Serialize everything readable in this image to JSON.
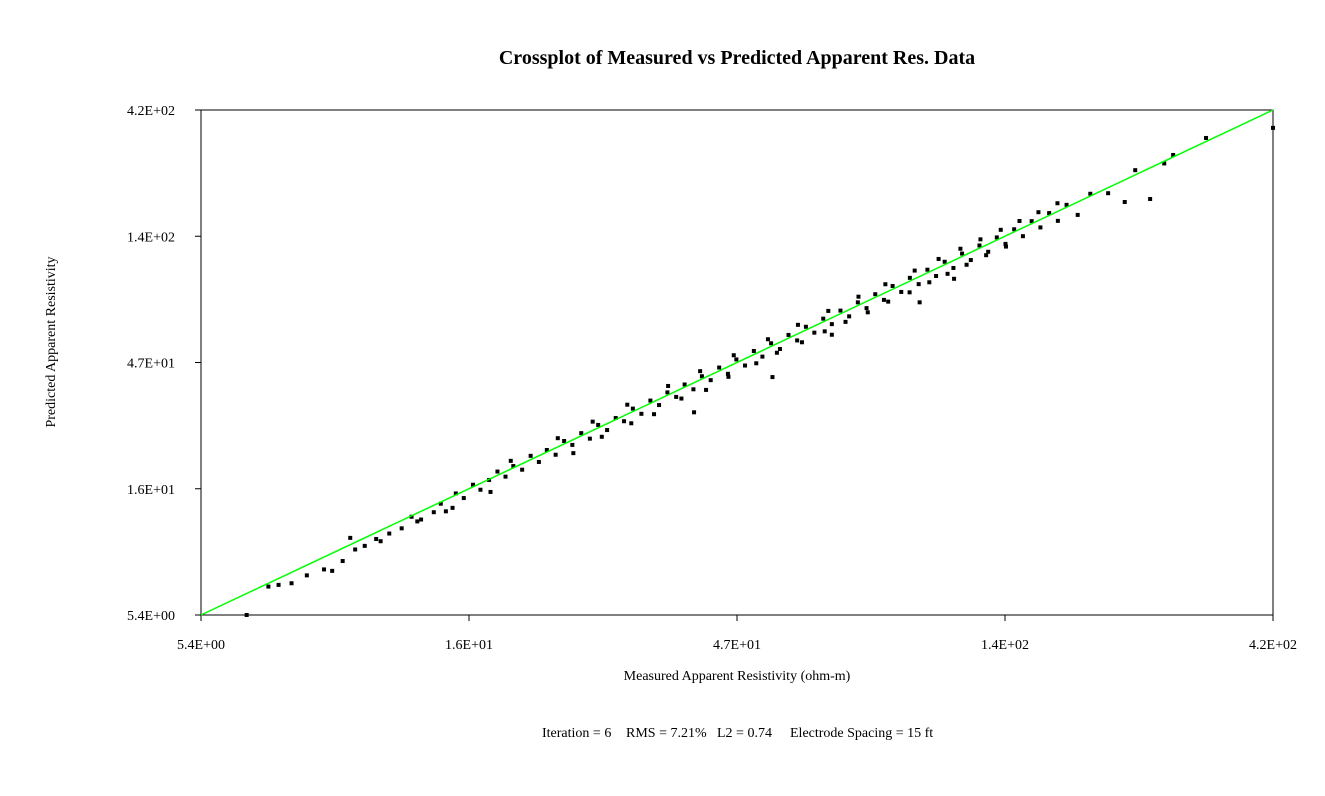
{
  "chart_data": {
    "type": "scatter",
    "title": "Crossplot of Measured vs Predicted Apparent Res. Data",
    "xlabel": "Measured Apparent Resistivity (ohm-m)",
    "ylabel": "Predicted Apparent Resistivity",
    "x_scale": "log",
    "y_scale": "log",
    "xlim": [
      5.4,
      420
    ],
    "ylim": [
      5.4,
      420
    ],
    "x_ticks": [
      "5.4E+00",
      "1.6E+01",
      "4.7E+01",
      "1.4E+02",
      "4.2E+02"
    ],
    "y_ticks": [
      "5.4E+00",
      "1.6E+01",
      "4.7E+01",
      "1.4E+02",
      "4.2E+02"
    ],
    "grid": false,
    "point_color": "#000000",
    "line_color": "#00ff00",
    "reference_line": {
      "x": [
        5.4,
        420
      ],
      "y": [
        5.4,
        420
      ]
    },
    "series": [
      {
        "points": [
          [
            6.5,
            5.4
          ],
          [
            7.1,
            6.9
          ],
          [
            7.4,
            7.0
          ],
          [
            7.8,
            7.1
          ],
          [
            8.3,
            7.6
          ],
          [
            8.9,
            8.0
          ],
          [
            9.2,
            7.9
          ],
          [
            9.6,
            8.6
          ],
          [
            10.1,
            9.5
          ],
          [
            10.5,
            9.8
          ],
          [
            11.2,
            10.2
          ],
          [
            11.6,
            10.9
          ],
          [
            12.2,
            11.4
          ],
          [
            12.7,
            12.6
          ],
          [
            13.2,
            12.3
          ],
          [
            13.9,
            13.1
          ],
          [
            14.3,
            14.1
          ],
          [
            14.6,
            13.2
          ],
          [
            15.2,
            15.4
          ],
          [
            15.7,
            14.8
          ],
          [
            16.3,
            16.6
          ],
          [
            16.8,
            15.9
          ],
          [
            17.4,
            17.3
          ],
          [
            18.0,
            18.6
          ],
          [
            18.6,
            17.8
          ],
          [
            19.2,
            19.5
          ],
          [
            19.9,
            18.9
          ],
          [
            20.6,
            21.3
          ],
          [
            21.3,
            20.2
          ],
          [
            22.0,
            22.4
          ],
          [
            22.8,
            21.5
          ],
          [
            23.6,
            24.2
          ],
          [
            24.4,
            23.4
          ],
          [
            25.3,
            25.9
          ],
          [
            26.2,
            24.7
          ],
          [
            27.1,
            27.8
          ],
          [
            28.1,
            26.6
          ],
          [
            29.1,
            29.5
          ],
          [
            30.1,
            28.7
          ],
          [
            31.2,
            32.0
          ],
          [
            32.3,
            30.6
          ],
          [
            33.5,
            34.3
          ],
          [
            34.7,
            33.0
          ],
          [
            35.9,
            36.8
          ],
          [
            37.2,
            35.4
          ],
          [
            38.5,
            39.4
          ],
          [
            39.9,
            37.8
          ],
          [
            41.3,
            42.3
          ],
          [
            42.8,
            40.9
          ],
          [
            44.3,
            45.6
          ],
          [
            45.9,
            43.2
          ],
          [
            47.5,
            48.9
          ],
          [
            49.2,
            46.4
          ],
          [
            51.0,
            52.6
          ],
          [
            52.8,
            50.1
          ],
          [
            54.7,
            56.2
          ],
          [
            56.7,
            53.5
          ],
          [
            58.7,
            60.4
          ],
          [
            60.8,
            57.6
          ],
          [
            63.0,
            64.8
          ],
          [
            65.2,
            61.6
          ],
          [
            67.6,
            69.5
          ],
          [
            70.0,
            66.3
          ],
          [
            72.5,
            74.5
          ],
          [
            75.1,
            70.9
          ],
          [
            77.8,
            80.0
          ],
          [
            80.6,
            76.1
          ],
          [
            83.5,
            85.8
          ],
          [
            86.5,
            81.7
          ],
          [
            89.6,
            92.1
          ],
          [
            92.8,
            87.5
          ],
          [
            96.1,
            98.8
          ],
          [
            99.6,
            93.6
          ],
          [
            103.2,
            106.0
          ],
          [
            106.9,
            100.4
          ],
          [
            110.7,
            113.5
          ],
          [
            114.7,
            107.6
          ],
          [
            118.8,
            121.8
          ],
          [
            123.1,
            115.2
          ],
          [
            127.5,
            130.6
          ],
          [
            132.1,
            123.7
          ],
          [
            136.8,
            140.0
          ],
          [
            141.7,
            132.4
          ],
          [
            146.8,
            150.2
          ],
          [
            152.1,
            141.5
          ],
          [
            157.6,
            161.1
          ],
          [
            163.3,
            152.6
          ],
          [
            169.2,
            172.7
          ],
          [
            175.3,
            161.5
          ],
          [
            181.6,
            185.4
          ],
          [
            190.0,
            170.0
          ],
          [
            200.0,
            204.0
          ],
          [
            215.0,
            205.0
          ],
          [
            230.0,
            190.0
          ],
          [
            240.0,
            250.0
          ],
          [
            255.0,
            195.0
          ],
          [
            270.0,
            265.0
          ],
          [
            280.0,
            285.0
          ],
          [
            320.0,
            330.0
          ],
          [
            420.0,
            360.0
          ],
          [
            24.5,
            21.8
          ],
          [
            27.5,
            25.1
          ],
          [
            31.0,
            28.2
          ],
          [
            34.0,
            30.5
          ],
          [
            38.0,
            34.9
          ],
          [
            42.0,
            37.6
          ],
          [
            46.0,
            42.1
          ],
          [
            51.5,
            47.3
          ],
          [
            56.0,
            51.8
          ],
          [
            62.0,
            56.7
          ],
          [
            68.0,
            62.3
          ],
          [
            74.0,
            67.6
          ],
          [
            81.0,
            73.4
          ],
          [
            88.0,
            80.5
          ],
          [
            96.0,
            87.2
          ],
          [
            104.0,
            95.1
          ],
          [
            112.0,
            102.3
          ],
          [
            121.0,
            110.6
          ],
          [
            131.0,
            120.1
          ],
          [
            142.0,
            129.4
          ],
          [
            19.0,
            20.4
          ],
          [
            23.0,
            24.8
          ],
          [
            26.5,
            28.6
          ],
          [
            30.5,
            33.1
          ],
          [
            36.0,
            38.9
          ],
          [
            41.0,
            44.2
          ],
          [
            47.0,
            50.7
          ],
          [
            54.0,
            58.2
          ],
          [
            61.0,
            65.9
          ],
          [
            69.0,
            74.3
          ],
          [
            78.0,
            84.0
          ],
          [
            87.0,
            93.5
          ],
          [
            98.0,
            105.2
          ],
          [
            108.0,
            116.3
          ],
          [
            118.0,
            127.0
          ],
          [
            128.0,
            137.7
          ],
          [
            139.0,
            149.5
          ],
          [
            150.0,
            161.3
          ],
          [
            162.0,
            174.0
          ],
          [
            175.0,
            188.0
          ],
          [
            17.5,
            15.6
          ],
          [
            15.0,
            13.6
          ],
          [
            13.0,
            12.1
          ],
          [
            11.0,
            10.4
          ],
          [
            9.9,
            10.5
          ],
          [
            55.0,
            42.0
          ],
          [
            40.0,
            31.0
          ],
          [
            70.0,
            60.5
          ],
          [
            100.0,
            80.0
          ],
          [
            115.0,
            98.0
          ]
        ]
      }
    ]
  },
  "footer": {
    "iteration": "Iteration = 6",
    "rms": "RMS = 7.21%",
    "l2": "L2 = 0.74",
    "spacing": "Electrode Spacing = 15 ft"
  }
}
